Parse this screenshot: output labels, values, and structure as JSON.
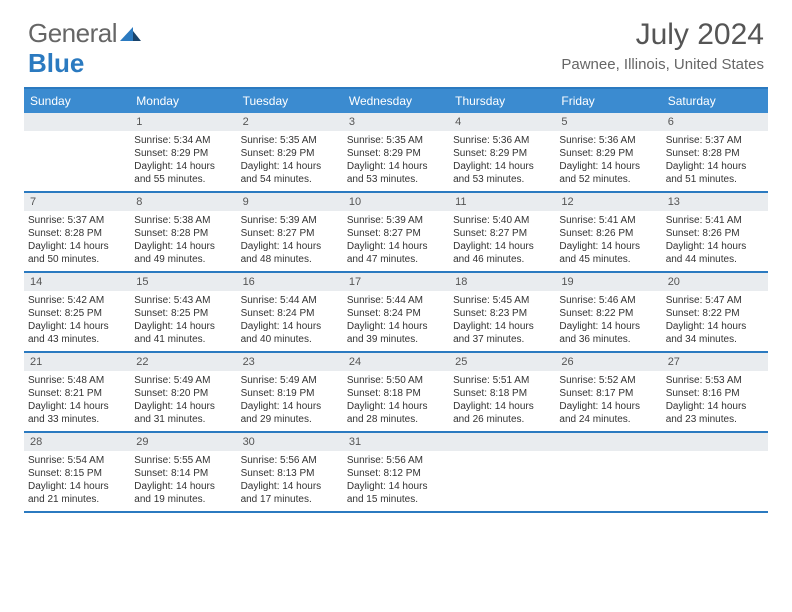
{
  "brand": {
    "part1": "General",
    "part2": "Blue"
  },
  "title": "July 2024",
  "location": "Pawnee, Illinois, United States",
  "colors": {
    "header_bg": "#3b8bd0",
    "header_text": "#ffffff",
    "rule": "#2b7ac0",
    "daynum_bg": "#e9ecef",
    "text": "#333333"
  },
  "day_names": [
    "Sunday",
    "Monday",
    "Tuesday",
    "Wednesday",
    "Thursday",
    "Friday",
    "Saturday"
  ],
  "weeks": [
    [
      {
        "n": "",
        "lines": []
      },
      {
        "n": "1",
        "lines": [
          "Sunrise: 5:34 AM",
          "Sunset: 8:29 PM",
          "Daylight: 14 hours and 55 minutes."
        ]
      },
      {
        "n": "2",
        "lines": [
          "Sunrise: 5:35 AM",
          "Sunset: 8:29 PM",
          "Daylight: 14 hours and 54 minutes."
        ]
      },
      {
        "n": "3",
        "lines": [
          "Sunrise: 5:35 AM",
          "Sunset: 8:29 PM",
          "Daylight: 14 hours and 53 minutes."
        ]
      },
      {
        "n": "4",
        "lines": [
          "Sunrise: 5:36 AM",
          "Sunset: 8:29 PM",
          "Daylight: 14 hours and 53 minutes."
        ]
      },
      {
        "n": "5",
        "lines": [
          "Sunrise: 5:36 AM",
          "Sunset: 8:29 PM",
          "Daylight: 14 hours and 52 minutes."
        ]
      },
      {
        "n": "6",
        "lines": [
          "Sunrise: 5:37 AM",
          "Sunset: 8:28 PM",
          "Daylight: 14 hours and 51 minutes."
        ]
      }
    ],
    [
      {
        "n": "7",
        "lines": [
          "Sunrise: 5:37 AM",
          "Sunset: 8:28 PM",
          "Daylight: 14 hours and 50 minutes."
        ]
      },
      {
        "n": "8",
        "lines": [
          "Sunrise: 5:38 AM",
          "Sunset: 8:28 PM",
          "Daylight: 14 hours and 49 minutes."
        ]
      },
      {
        "n": "9",
        "lines": [
          "Sunrise: 5:39 AM",
          "Sunset: 8:27 PM",
          "Daylight: 14 hours and 48 minutes."
        ]
      },
      {
        "n": "10",
        "lines": [
          "Sunrise: 5:39 AM",
          "Sunset: 8:27 PM",
          "Daylight: 14 hours and 47 minutes."
        ]
      },
      {
        "n": "11",
        "lines": [
          "Sunrise: 5:40 AM",
          "Sunset: 8:27 PM",
          "Daylight: 14 hours and 46 minutes."
        ]
      },
      {
        "n": "12",
        "lines": [
          "Sunrise: 5:41 AM",
          "Sunset: 8:26 PM",
          "Daylight: 14 hours and 45 minutes."
        ]
      },
      {
        "n": "13",
        "lines": [
          "Sunrise: 5:41 AM",
          "Sunset: 8:26 PM",
          "Daylight: 14 hours and 44 minutes."
        ]
      }
    ],
    [
      {
        "n": "14",
        "lines": [
          "Sunrise: 5:42 AM",
          "Sunset: 8:25 PM",
          "Daylight: 14 hours and 43 minutes."
        ]
      },
      {
        "n": "15",
        "lines": [
          "Sunrise: 5:43 AM",
          "Sunset: 8:25 PM",
          "Daylight: 14 hours and 41 minutes."
        ]
      },
      {
        "n": "16",
        "lines": [
          "Sunrise: 5:44 AM",
          "Sunset: 8:24 PM",
          "Daylight: 14 hours and 40 minutes."
        ]
      },
      {
        "n": "17",
        "lines": [
          "Sunrise: 5:44 AM",
          "Sunset: 8:24 PM",
          "Daylight: 14 hours and 39 minutes."
        ]
      },
      {
        "n": "18",
        "lines": [
          "Sunrise: 5:45 AM",
          "Sunset: 8:23 PM",
          "Daylight: 14 hours and 37 minutes."
        ]
      },
      {
        "n": "19",
        "lines": [
          "Sunrise: 5:46 AM",
          "Sunset: 8:22 PM",
          "Daylight: 14 hours and 36 minutes."
        ]
      },
      {
        "n": "20",
        "lines": [
          "Sunrise: 5:47 AM",
          "Sunset: 8:22 PM",
          "Daylight: 14 hours and 34 minutes."
        ]
      }
    ],
    [
      {
        "n": "21",
        "lines": [
          "Sunrise: 5:48 AM",
          "Sunset: 8:21 PM",
          "Daylight: 14 hours and 33 minutes."
        ]
      },
      {
        "n": "22",
        "lines": [
          "Sunrise: 5:49 AM",
          "Sunset: 8:20 PM",
          "Daylight: 14 hours and 31 minutes."
        ]
      },
      {
        "n": "23",
        "lines": [
          "Sunrise: 5:49 AM",
          "Sunset: 8:19 PM",
          "Daylight: 14 hours and 29 minutes."
        ]
      },
      {
        "n": "24",
        "lines": [
          "Sunrise: 5:50 AM",
          "Sunset: 8:18 PM",
          "Daylight: 14 hours and 28 minutes."
        ]
      },
      {
        "n": "25",
        "lines": [
          "Sunrise: 5:51 AM",
          "Sunset: 8:18 PM",
          "Daylight: 14 hours and 26 minutes."
        ]
      },
      {
        "n": "26",
        "lines": [
          "Sunrise: 5:52 AM",
          "Sunset: 8:17 PM",
          "Daylight: 14 hours and 24 minutes."
        ]
      },
      {
        "n": "27",
        "lines": [
          "Sunrise: 5:53 AM",
          "Sunset: 8:16 PM",
          "Daylight: 14 hours and 23 minutes."
        ]
      }
    ],
    [
      {
        "n": "28",
        "lines": [
          "Sunrise: 5:54 AM",
          "Sunset: 8:15 PM",
          "Daylight: 14 hours and 21 minutes."
        ]
      },
      {
        "n": "29",
        "lines": [
          "Sunrise: 5:55 AM",
          "Sunset: 8:14 PM",
          "Daylight: 14 hours and 19 minutes."
        ]
      },
      {
        "n": "30",
        "lines": [
          "Sunrise: 5:56 AM",
          "Sunset: 8:13 PM",
          "Daylight: 14 hours and 17 minutes."
        ]
      },
      {
        "n": "31",
        "lines": [
          "Sunrise: 5:56 AM",
          "Sunset: 8:12 PM",
          "Daylight: 14 hours and 15 minutes."
        ]
      },
      {
        "n": "",
        "lines": []
      },
      {
        "n": "",
        "lines": []
      },
      {
        "n": "",
        "lines": []
      }
    ]
  ]
}
